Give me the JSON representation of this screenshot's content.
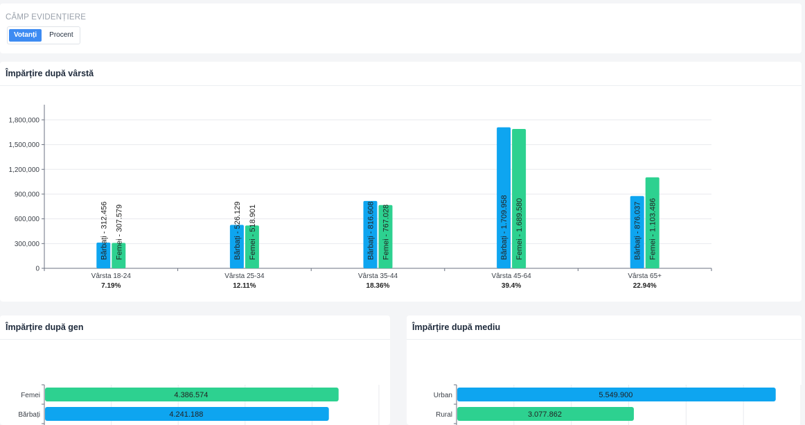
{
  "controls": {
    "label": "CÂMP EVIDENȚIERE",
    "options": [
      "Votanți",
      "Procent"
    ],
    "selected": "Votanți"
  },
  "colors": {
    "barbati": "#0ea5f0",
    "femei": "#2dd190",
    "axis": "#6b7280",
    "grid": "#e8eaee",
    "text": "#3a3f47"
  },
  "age_panel": {
    "title": "Împărțire după vârstă"
  },
  "gender_panel": {
    "title": "Împărțire după gen"
  },
  "env_panel": {
    "title": "Împărțire după mediu"
  },
  "chart_data": [
    {
      "type": "bar",
      "categories": [
        "Vârsta 18-24",
        "Vârsta 25-34",
        "Vârsta 35-44",
        "Vârsta 45-64",
        "Vârsta 65+"
      ],
      "category_percent": [
        "7.19%",
        "12.11%",
        "18.36%",
        "39.4%",
        "22.94%"
      ],
      "series": [
        {
          "label_prefix": "Bărbați",
          "values": [
            312456,
            526129,
            816608,
            1709958,
            876037
          ],
          "value_labels": [
            "312.456",
            "526.129",
            "816.608",
            "1.709.958",
            "876.037"
          ],
          "color": "#0ea5f0"
        },
        {
          "label_prefix": "Femei",
          "values": [
            307579,
            518901,
            767028,
            1689580,
            1103486
          ],
          "value_labels": [
            "307.579",
            "518.901",
            "767.028",
            "1.689.580",
            "1.103.486"
          ],
          "color": "#2dd190"
        }
      ],
      "ylim": [
        0,
        1900000
      ],
      "yticks": [
        0,
        300000,
        600000,
        900000,
        1200000,
        1500000,
        1800000
      ],
      "ytick_labels": [
        "0",
        "300,000",
        "600,000",
        "900,000",
        "1,200,000",
        "1,500,000",
        "1,800,000"
      ],
      "grid": true
    },
    {
      "type": "bar",
      "orientation": "horizontal",
      "categories": [
        "Femei",
        "Bărbați"
      ],
      "values": [
        4386574,
        4241188
      ],
      "value_labels": [
        "4.386.574",
        "4.241.188"
      ],
      "colors": [
        "#2dd190",
        "#0ea5f0"
      ],
      "xlim": [
        0,
        5000000
      ],
      "grid": true
    },
    {
      "type": "bar",
      "orientation": "horizontal",
      "categories": [
        "Urban",
        "Rural"
      ],
      "values": [
        5549900,
        3077862
      ],
      "value_labels": [
        "5.549.900",
        "3.077.862"
      ],
      "colors": [
        "#0ea5f0",
        "#2dd190"
      ],
      "xlim": [
        0,
        6000000
      ],
      "grid": true
    }
  ]
}
